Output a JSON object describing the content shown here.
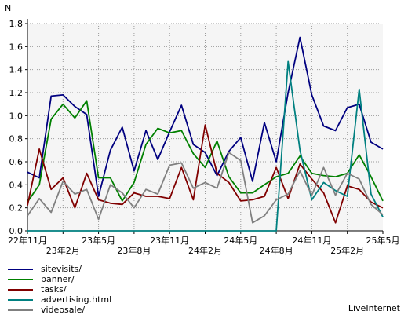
{
  "chart_data": {
    "type": "line",
    "ylabel": "N",
    "ylim": [
      0,
      1.8
    ],
    "yticks": [
      "0.0",
      "0.2",
      "0.4",
      "0.6",
      "0.8",
      "1.0",
      "1.2",
      "1.4",
      "1.6",
      "1.8"
    ],
    "xticks_upper": [
      "22年11月",
      "23年5月",
      "23年11月",
      "24年5月",
      "24年11月",
      "25年5月"
    ],
    "xticks_lower": [
      "23年2月",
      "23年8月",
      "24年2月",
      "24年8月",
      "25年2月"
    ],
    "grid": true,
    "legend_placement": "bottom-left",
    "series": [
      {
        "name": "sitevisits/",
        "color": "#000080",
        "values": [
          0.51,
          0.46,
          1.17,
          1.18,
          1.08,
          1.01,
          0.3,
          0.7,
          0.9,
          0.52,
          0.87,
          0.62,
          0.86,
          1.09,
          0.75,
          0.68,
          0.48,
          0.69,
          0.81,
          0.43,
          0.94,
          0.6,
          1.2,
          1.68,
          1.18,
          0.91,
          0.87,
          1.07,
          1.1,
          0.77,
          0.71
        ]
      },
      {
        "name": "banner/",
        "color": "#008000",
        "values": [
          0.25,
          0.4,
          0.97,
          1.1,
          0.98,
          1.13,
          0.46,
          0.46,
          0.26,
          0.42,
          0.75,
          0.89,
          0.85,
          0.87,
          0.67,
          0.55,
          0.78,
          0.47,
          0.33,
          0.33,
          0.4,
          0.47,
          0.5,
          0.65,
          0.5,
          0.48,
          0.47,
          0.5,
          0.66,
          0.47,
          0.26
        ]
      },
      {
        "name": "tasks/",
        "color": "#800000",
        "values": [
          0.22,
          0.71,
          0.36,
          0.46,
          0.2,
          0.5,
          0.27,
          0.24,
          0.23,
          0.33,
          0.3,
          0.3,
          0.28,
          0.55,
          0.27,
          0.92,
          0.5,
          0.42,
          0.26,
          0.27,
          0.3,
          0.55,
          0.28,
          0.58,
          0.45,
          0.33,
          0.07,
          0.39,
          0.36,
          0.25,
          0.2
        ]
      },
      {
        "name": "advertising.html",
        "color": "#008080",
        "values": [
          0,
          0,
          0,
          0,
          0,
          0,
          0,
          0,
          0,
          0,
          0,
          0,
          0,
          0,
          0,
          0,
          0,
          0,
          0,
          0,
          0,
          0,
          1.47,
          0.7,
          0.27,
          0.42,
          0.35,
          0.3,
          1.23,
          0.32,
          0.12
        ]
      },
      {
        "name": "videosale/",
        "color": "#808080",
        "values": [
          0.13,
          0.28,
          0.16,
          0.43,
          0.32,
          0.36,
          0.1,
          0.4,
          0.33,
          0.2,
          0.36,
          0.32,
          0.57,
          0.59,
          0.37,
          0.42,
          0.37,
          0.68,
          0.61,
          0.07,
          0.13,
          0.27,
          0.32,
          0.52,
          0.31,
          0.55,
          0.31,
          0.5,
          0.45,
          0.23,
          0.14
        ]
      }
    ]
  },
  "footer": {
    "credit": "LiveInternet"
  }
}
